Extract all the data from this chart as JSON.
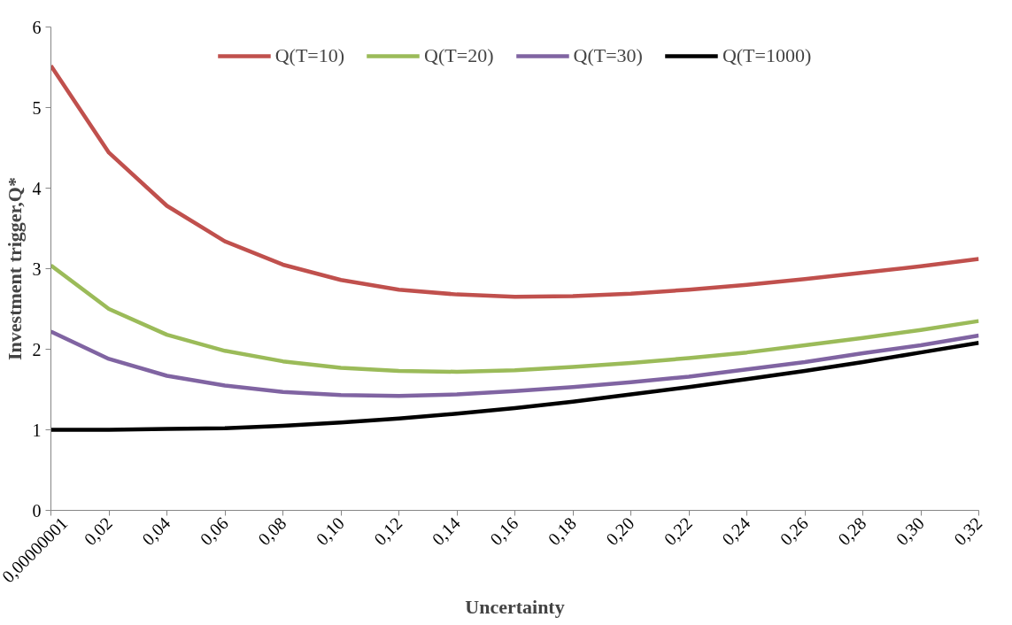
{
  "chart_data": {
    "type": "line",
    "xlabel": "Uncertainty",
    "ylabel": "Investment trigger,Q*",
    "categories": [
      "0,00000001",
      "0,02",
      "0,04",
      "0,06",
      "0,08",
      "0,10",
      "0,12",
      "0,14",
      "0,16",
      "0,18",
      "0,20",
      "0,22",
      "0,24",
      "0,26",
      "0,28",
      "0,30",
      "0,32"
    ],
    "series": [
      {
        "name": "Q(T=10)",
        "color": "#c0504d",
        "values": [
          5.52,
          4.44,
          3.78,
          3.34,
          3.05,
          2.86,
          2.74,
          2.68,
          2.65,
          2.66,
          2.69,
          2.74,
          2.8,
          2.87,
          2.95,
          3.03,
          3.12
        ]
      },
      {
        "name": "Q(T=20)",
        "color": "#9bbb59",
        "values": [
          3.04,
          2.5,
          2.18,
          1.98,
          1.85,
          1.77,
          1.73,
          1.72,
          1.74,
          1.78,
          1.83,
          1.89,
          1.96,
          2.05,
          2.14,
          2.24,
          2.35
        ]
      },
      {
        "name": "Q(T=30)",
        "color": "#8064a2",
        "values": [
          2.22,
          1.88,
          1.67,
          1.55,
          1.47,
          1.43,
          1.42,
          1.44,
          1.48,
          1.53,
          1.59,
          1.66,
          1.75,
          1.84,
          1.95,
          2.05,
          2.17
        ]
      },
      {
        "name": "Q(T=1000)",
        "color": "#000000",
        "values": [
          1.0,
          1.0,
          1.01,
          1.02,
          1.05,
          1.09,
          1.14,
          1.2,
          1.27,
          1.35,
          1.44,
          1.53,
          1.63,
          1.73,
          1.84,
          1.96,
          2.08
        ]
      }
    ],
    "ylim": [
      0,
      6
    ],
    "yticks": [
      0,
      1,
      2,
      3,
      4,
      5,
      6
    ],
    "grid": false,
    "legend": "top",
    "marker": "none",
    "line_style": "solid"
  }
}
